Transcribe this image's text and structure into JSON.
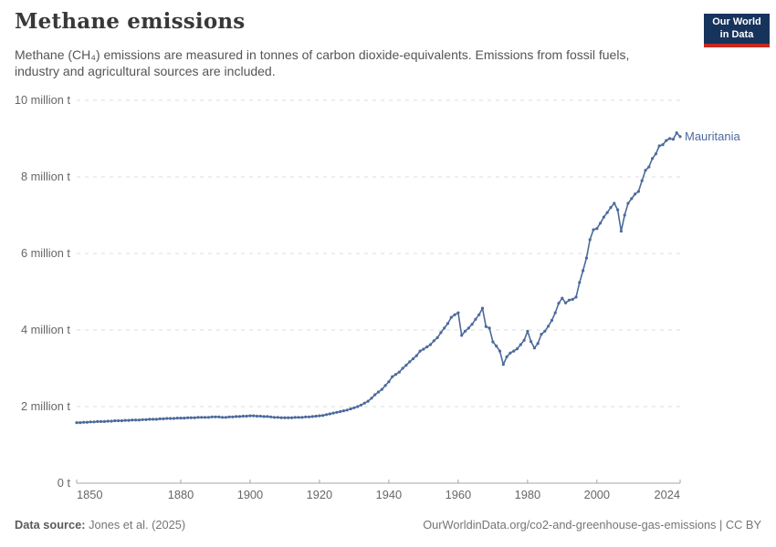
{
  "header": {
    "title": "Methane emissions",
    "subtitle": "Methane (CH₄) emissions are measured in tonnes of carbon dioxide-equivalents. Emissions from fossil fuels, industry and agricultural sources are included.",
    "logo_line1": "Our World",
    "logo_line2": "in Data"
  },
  "footer": {
    "datasource_label": "Data source:",
    "datasource_value": "Jones et al. (2025)",
    "credit": "OurWorldinData.org/co2-and-greenhouse-gas-emissions | CC BY"
  },
  "colors": {
    "line": "#4C6A9C",
    "grid": "#DCDCDC",
    "axis": "#A5A5A5",
    "tick_text": "#666666",
    "logo_bg": "#16335C",
    "logo_accent": "#C7291F"
  },
  "chart_data": {
    "type": "line",
    "title": "Methane emissions",
    "unit": "tonnes of carbon dioxide-equivalents",
    "xlim": [
      1850,
      2024
    ],
    "ylim": [
      0,
      10
    ],
    "grid": "horizontal-dashed",
    "legend_position": "end-of-line-label",
    "x_ticks": [
      1850,
      1880,
      1900,
      1920,
      1940,
      1960,
      1980,
      2000,
      2024
    ],
    "y_ticks": [
      {
        "value": 0,
        "label": "0 t"
      },
      {
        "value": 2,
        "label": "2 million t"
      },
      {
        "value": 4,
        "label": "4 million t"
      },
      {
        "value": 6,
        "label": "6 million t"
      },
      {
        "value": 8,
        "label": "8 million t"
      },
      {
        "value": 10,
        "label": "10 million t"
      }
    ],
    "y_unit_of_values": "million tonnes CO2-equivalents",
    "series": [
      {
        "name": "Mauritania",
        "color": "#4C6A9C",
        "start_year": 1850,
        "end_year": 2024,
        "values": [
          1.58,
          1.58,
          1.59,
          1.59,
          1.6,
          1.6,
          1.61,
          1.61,
          1.61,
          1.62,
          1.62,
          1.63,
          1.63,
          1.63,
          1.64,
          1.64,
          1.65,
          1.65,
          1.65,
          1.66,
          1.66,
          1.67,
          1.67,
          1.67,
          1.68,
          1.68,
          1.69,
          1.69,
          1.69,
          1.7,
          1.7,
          1.7,
          1.71,
          1.71,
          1.71,
          1.72,
          1.72,
          1.72,
          1.72,
          1.73,
          1.73,
          1.73,
          1.72,
          1.72,
          1.73,
          1.73,
          1.74,
          1.74,
          1.75,
          1.75,
          1.76,
          1.76,
          1.75,
          1.75,
          1.74,
          1.74,
          1.73,
          1.72,
          1.72,
          1.71,
          1.71,
          1.71,
          1.71,
          1.72,
          1.72,
          1.72,
          1.73,
          1.73,
          1.74,
          1.75,
          1.76,
          1.77,
          1.79,
          1.81,
          1.83,
          1.85,
          1.87,
          1.89,
          1.91,
          1.94,
          1.97,
          2.0,
          2.04,
          2.09,
          2.14,
          2.22,
          2.31,
          2.38,
          2.45,
          2.55,
          2.65,
          2.78,
          2.84,
          2.9,
          3.0,
          3.08,
          3.17,
          3.25,
          3.33,
          3.45,
          3.5,
          3.56,
          3.62,
          3.72,
          3.8,
          3.93,
          4.05,
          4.17,
          4.33,
          4.4,
          4.45,
          3.86,
          3.97,
          4.05,
          4.15,
          4.28,
          4.4,
          4.57,
          4.09,
          4.05,
          3.69,
          3.58,
          3.45,
          3.1,
          3.3,
          3.4,
          3.45,
          3.51,
          3.62,
          3.73,
          3.97,
          3.7,
          3.53,
          3.65,
          3.89,
          3.97,
          4.1,
          4.25,
          4.45,
          4.7,
          4.83,
          4.71,
          4.78,
          4.8,
          4.86,
          5.24,
          5.55,
          5.88,
          6.36,
          6.62,
          6.65,
          6.79,
          6.95,
          7.07,
          7.2,
          7.31,
          7.14,
          6.58,
          7.0,
          7.31,
          7.43,
          7.55,
          7.62,
          7.9,
          8.17,
          8.26,
          8.48,
          8.6,
          8.81,
          8.84,
          8.95,
          9.0,
          8.98,
          9.15,
          9.05
        ]
      }
    ]
  }
}
